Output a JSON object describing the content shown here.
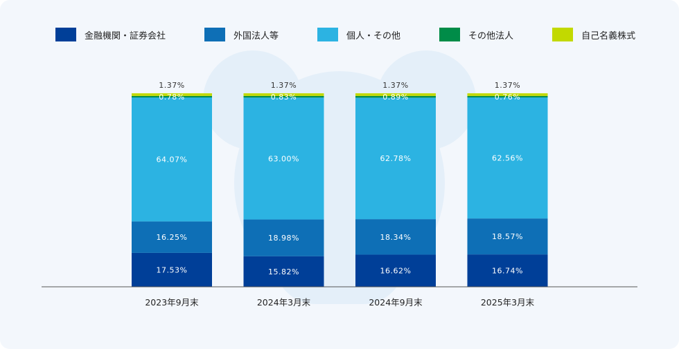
{
  "chart_data": {
    "type": "bar",
    "stacked": true,
    "categories": [
      "2023年9月末",
      "2024年3月末",
      "2024年9月末",
      "2025年3月末"
    ],
    "series": [
      {
        "name": "金融機関・証券会社",
        "color": "#003f98",
        "values": [
          17.53,
          15.82,
          16.62,
          16.74
        ],
        "labels": [
          "17.53%",
          "15.82%",
          "16.62%",
          "16.74%"
        ]
      },
      {
        "name": "外国法人等",
        "color": "#0e6fb6",
        "values": [
          16.25,
          18.98,
          18.34,
          18.57
        ],
        "labels": [
          "16.25%",
          "18.98%",
          "18.34%",
          "18.57%"
        ]
      },
      {
        "name": "個人・その他",
        "color": "#2cb3e2",
        "values": [
          64.07,
          63.0,
          62.78,
          62.56
        ],
        "labels": [
          "64.07%",
          "63.00%",
          "62.78%",
          "62.56%"
        ]
      },
      {
        "name": "その他法人",
        "color": "#008c48",
        "values": [
          0.78,
          0.83,
          0.89,
          0.76
        ],
        "labels": [
          "0.78%",
          "0.83%",
          "0.89%",
          "0.76%"
        ]
      },
      {
        "name": "自己名義株式",
        "color": "#c2d900",
        "values": [
          1.37,
          1.37,
          1.37,
          1.37
        ],
        "labels": [
          "1.37%",
          "1.37%",
          "1.37%",
          "1.37%"
        ]
      }
    ],
    "ylim": [
      0,
      100
    ],
    "legend_position": "top",
    "grid": false
  }
}
